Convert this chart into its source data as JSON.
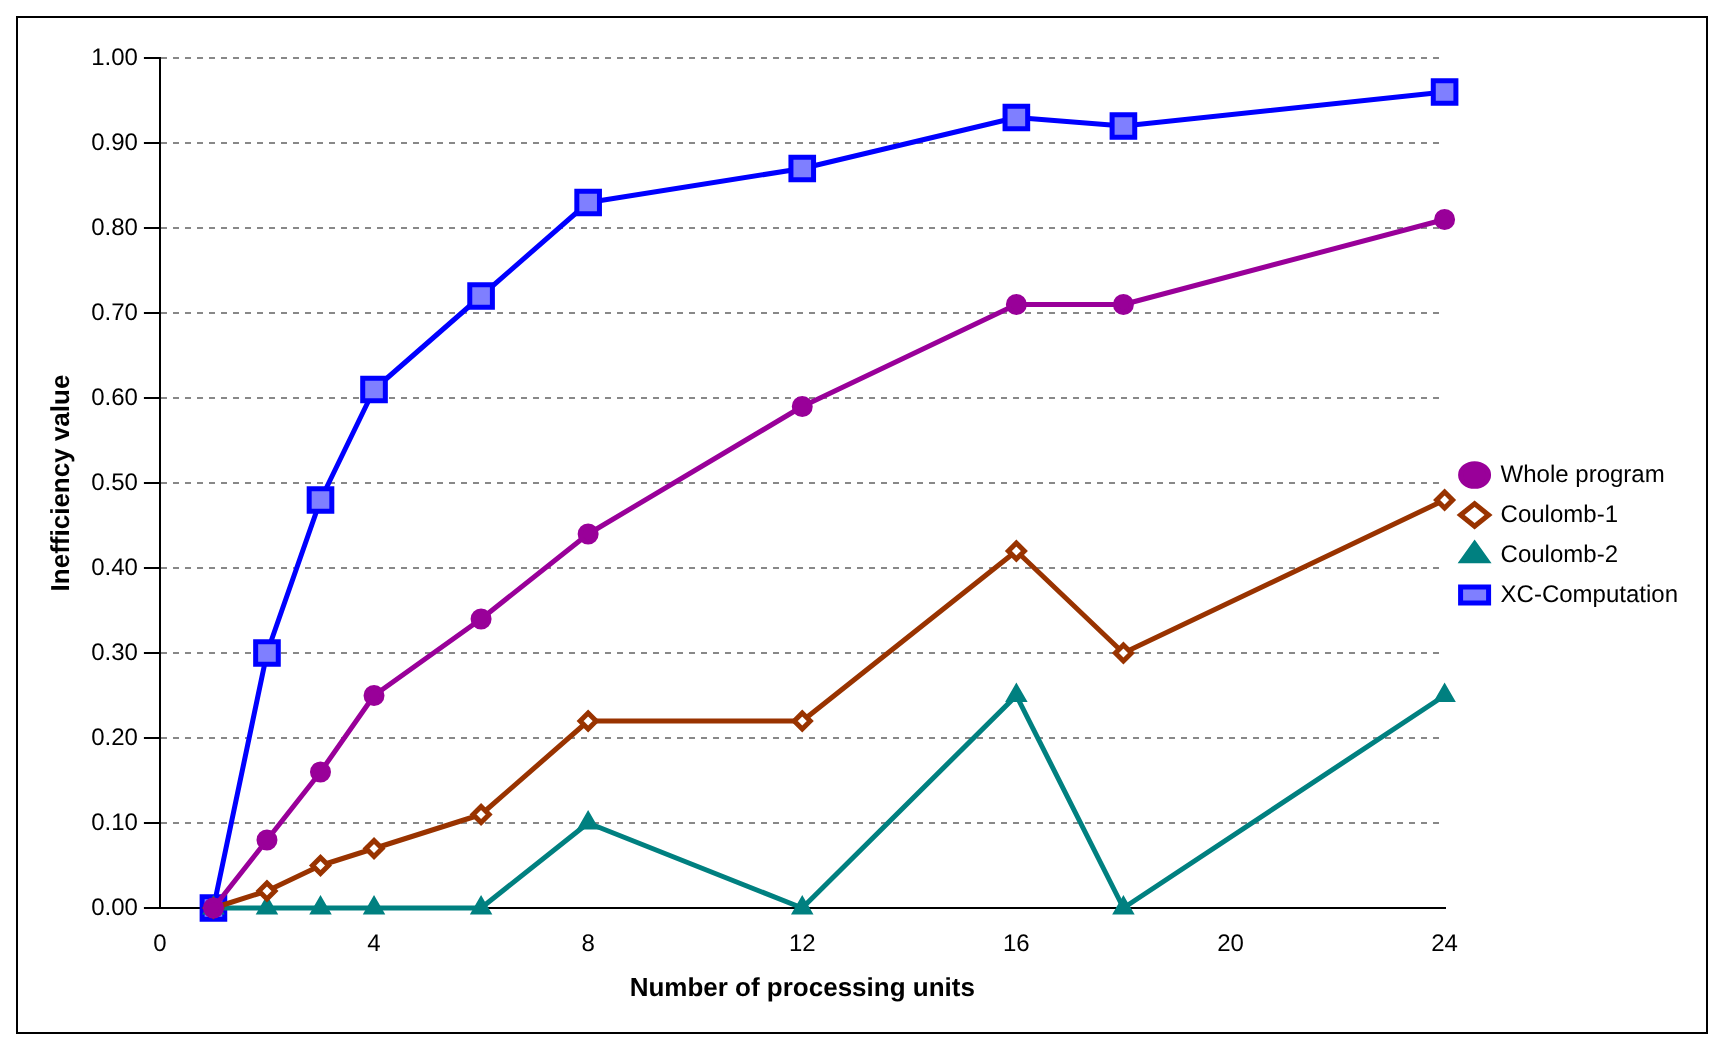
{
  "chart_data": {
    "type": "line",
    "xlabel": "Number of processing units",
    "ylabel": "Inefficiency value",
    "x": [
      1,
      2,
      3,
      4,
      6,
      8,
      12,
      16,
      18,
      24
    ],
    "series": [
      {
        "name": "Whole program",
        "color": "#990099",
        "marker": "circle",
        "values": [
          0,
          0.08,
          0.16,
          0.25,
          0.34,
          0.44,
          0.59,
          0.71,
          0.71,
          0.81
        ]
      },
      {
        "name": "Coulomb-1",
        "color": "#993300",
        "marker": "diamond",
        "values": [
          0,
          0.02,
          0.05,
          0.07,
          0.11,
          0.22,
          0.22,
          0.42,
          0.3,
          0.48
        ]
      },
      {
        "name": "Coulomb-2",
        "color": "#008080",
        "marker": "triangle",
        "values": [
          0,
          0,
          0,
          0,
          0,
          0.1,
          0,
          0.25,
          0,
          0.25
        ]
      },
      {
        "name": "XC-Computation",
        "color": "#0000ff",
        "marker": "square",
        "values": [
          0,
          0.3,
          0.48,
          0.61,
          0.72,
          0.83,
          0.87,
          0.93,
          0.92,
          0.96
        ]
      }
    ],
    "xlim": [
      0,
      24
    ],
    "xticks": [
      0,
      4,
      8,
      12,
      16,
      20,
      24
    ],
    "ylim": [
      0,
      1
    ],
    "yticks": [
      {
        "value": 0,
        "label": "0.00"
      },
      {
        "value": 0.1,
        "label": "0.10"
      },
      {
        "value": 0.2,
        "label": "0.20"
      },
      {
        "value": 0.3,
        "label": "0.30"
      },
      {
        "value": 0.4,
        "label": "0.40"
      },
      {
        "value": 0.5,
        "label": "0.50"
      },
      {
        "value": 0.6,
        "label": "0.60"
      },
      {
        "value": 0.7,
        "label": "0.70"
      },
      {
        "value": 0.8,
        "label": "0.80"
      },
      {
        "value": 0.9,
        "label": "0.90"
      },
      {
        "value": 1,
        "label": "1.00"
      }
    ],
    "grid": "y",
    "legend": "right"
  }
}
